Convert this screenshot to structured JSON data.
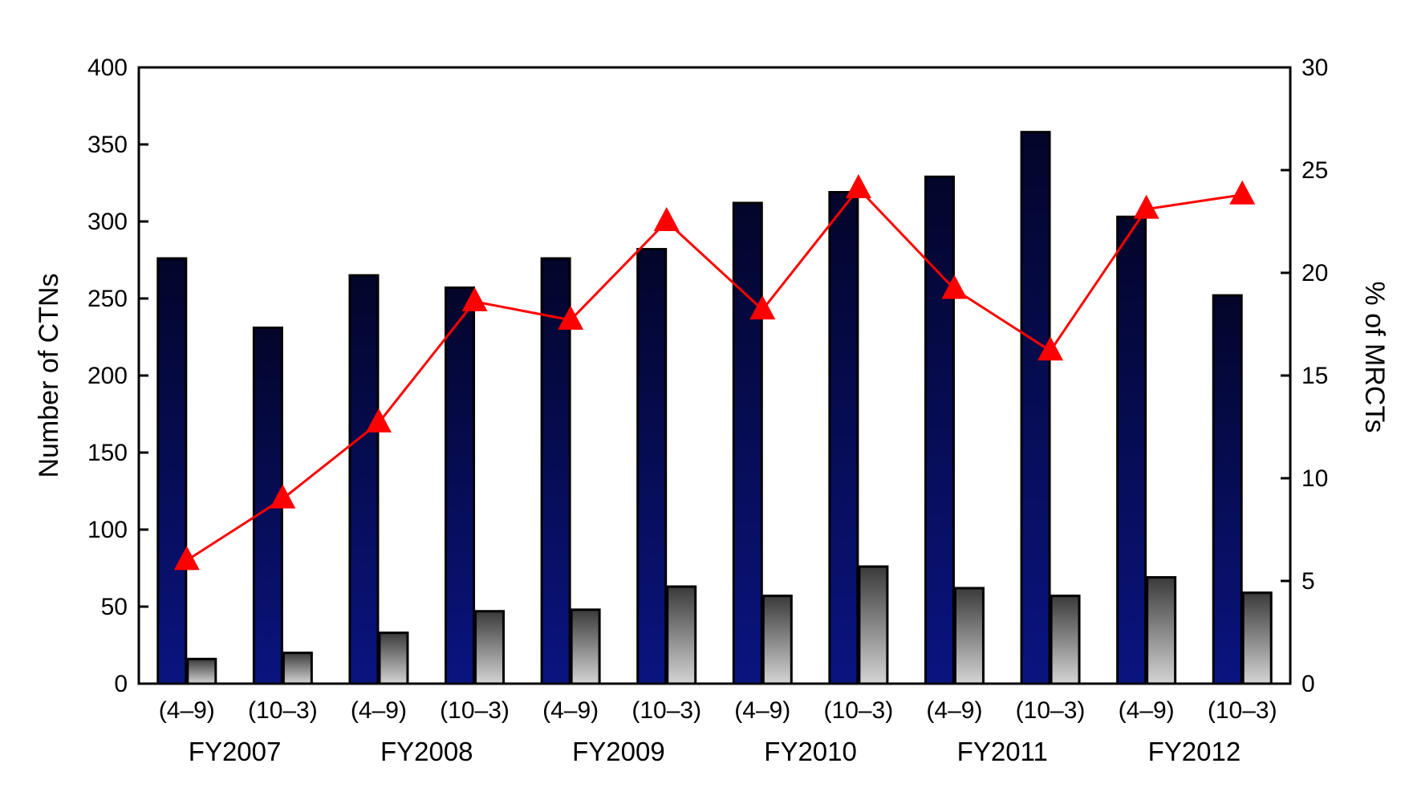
{
  "chart_data": {
    "type": "bar",
    "categories": [
      "(4–9)",
      "(10–3)",
      "(4–9)",
      "(10–3)",
      "(4–9)",
      "(10–3)",
      "(4–9)",
      "(10–3)",
      "(4–9)",
      "(10–3)",
      "(4–9)",
      "(10–3)"
    ],
    "groups": [
      "FY2007",
      "FY2008",
      "FY2009",
      "FY2010",
      "FY2011",
      "FY2012"
    ],
    "series": [
      {
        "values": [
          276,
          231,
          265,
          257,
          276,
          282,
          312,
          319,
          329,
          358,
          303,
          252
        ],
        "axis": "left",
        "color": "#0a1470",
        "kind": "bar"
      },
      {
        "values": [
          16,
          20,
          33,
          47,
          48,
          63,
          57,
          76,
          62,
          57,
          69,
          59
        ],
        "axis": "left",
        "color": "#9a9a9a",
        "kind": "bar"
      },
      {
        "values": [
          6.0,
          9.0,
          12.7,
          18.6,
          17.7,
          22.5,
          18.2,
          24.1,
          19.2,
          16.2,
          23.1,
          23.8
        ],
        "axis": "right",
        "color": "#ff0000",
        "kind": "line",
        "marker": "triangle"
      }
    ],
    "ylabel": "Number of CTNs",
    "y2label": "% of MRCTs",
    "ylim": [
      0,
      400
    ],
    "y2lim": [
      0,
      30
    ],
    "yticks": [
      "0",
      "50",
      "100",
      "150",
      "200",
      "250",
      "300",
      "350",
      "400"
    ],
    "y2ticks": [
      "0",
      "5",
      "10",
      "15",
      "20",
      "25",
      "30"
    ],
    "grid": false
  }
}
